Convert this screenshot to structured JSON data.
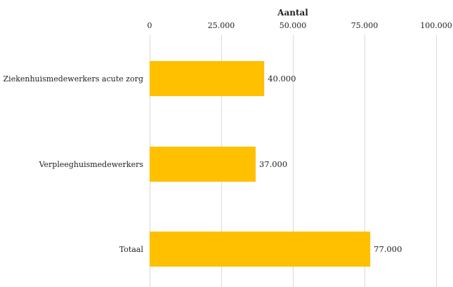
{
  "chart_data": {
    "type": "bar",
    "orientation": "horizontal",
    "title": "",
    "xlabel": "Aantal",
    "ylabel": "",
    "xaxis_position": "top",
    "xlim": [
      0,
      100000
    ],
    "xticks": [
      0,
      25000,
      50000,
      75000,
      100000
    ],
    "xtick_labels": [
      "0",
      "25.000",
      "50.000",
      "75.000",
      "100.000"
    ],
    "grid": true,
    "legend": "none",
    "categories": [
      "Ziekenhuismedewerkers acute zorg",
      "Verpleeghuismedewerkers",
      "Totaal"
    ],
    "values": [
      40000,
      37000,
      77000
    ],
    "data_labels": [
      "40.000",
      "37.000",
      "77.000"
    ],
    "colors": {
      "bar": "#FFC000",
      "grid": "#D9D9D9",
      "text": "#222222"
    }
  }
}
